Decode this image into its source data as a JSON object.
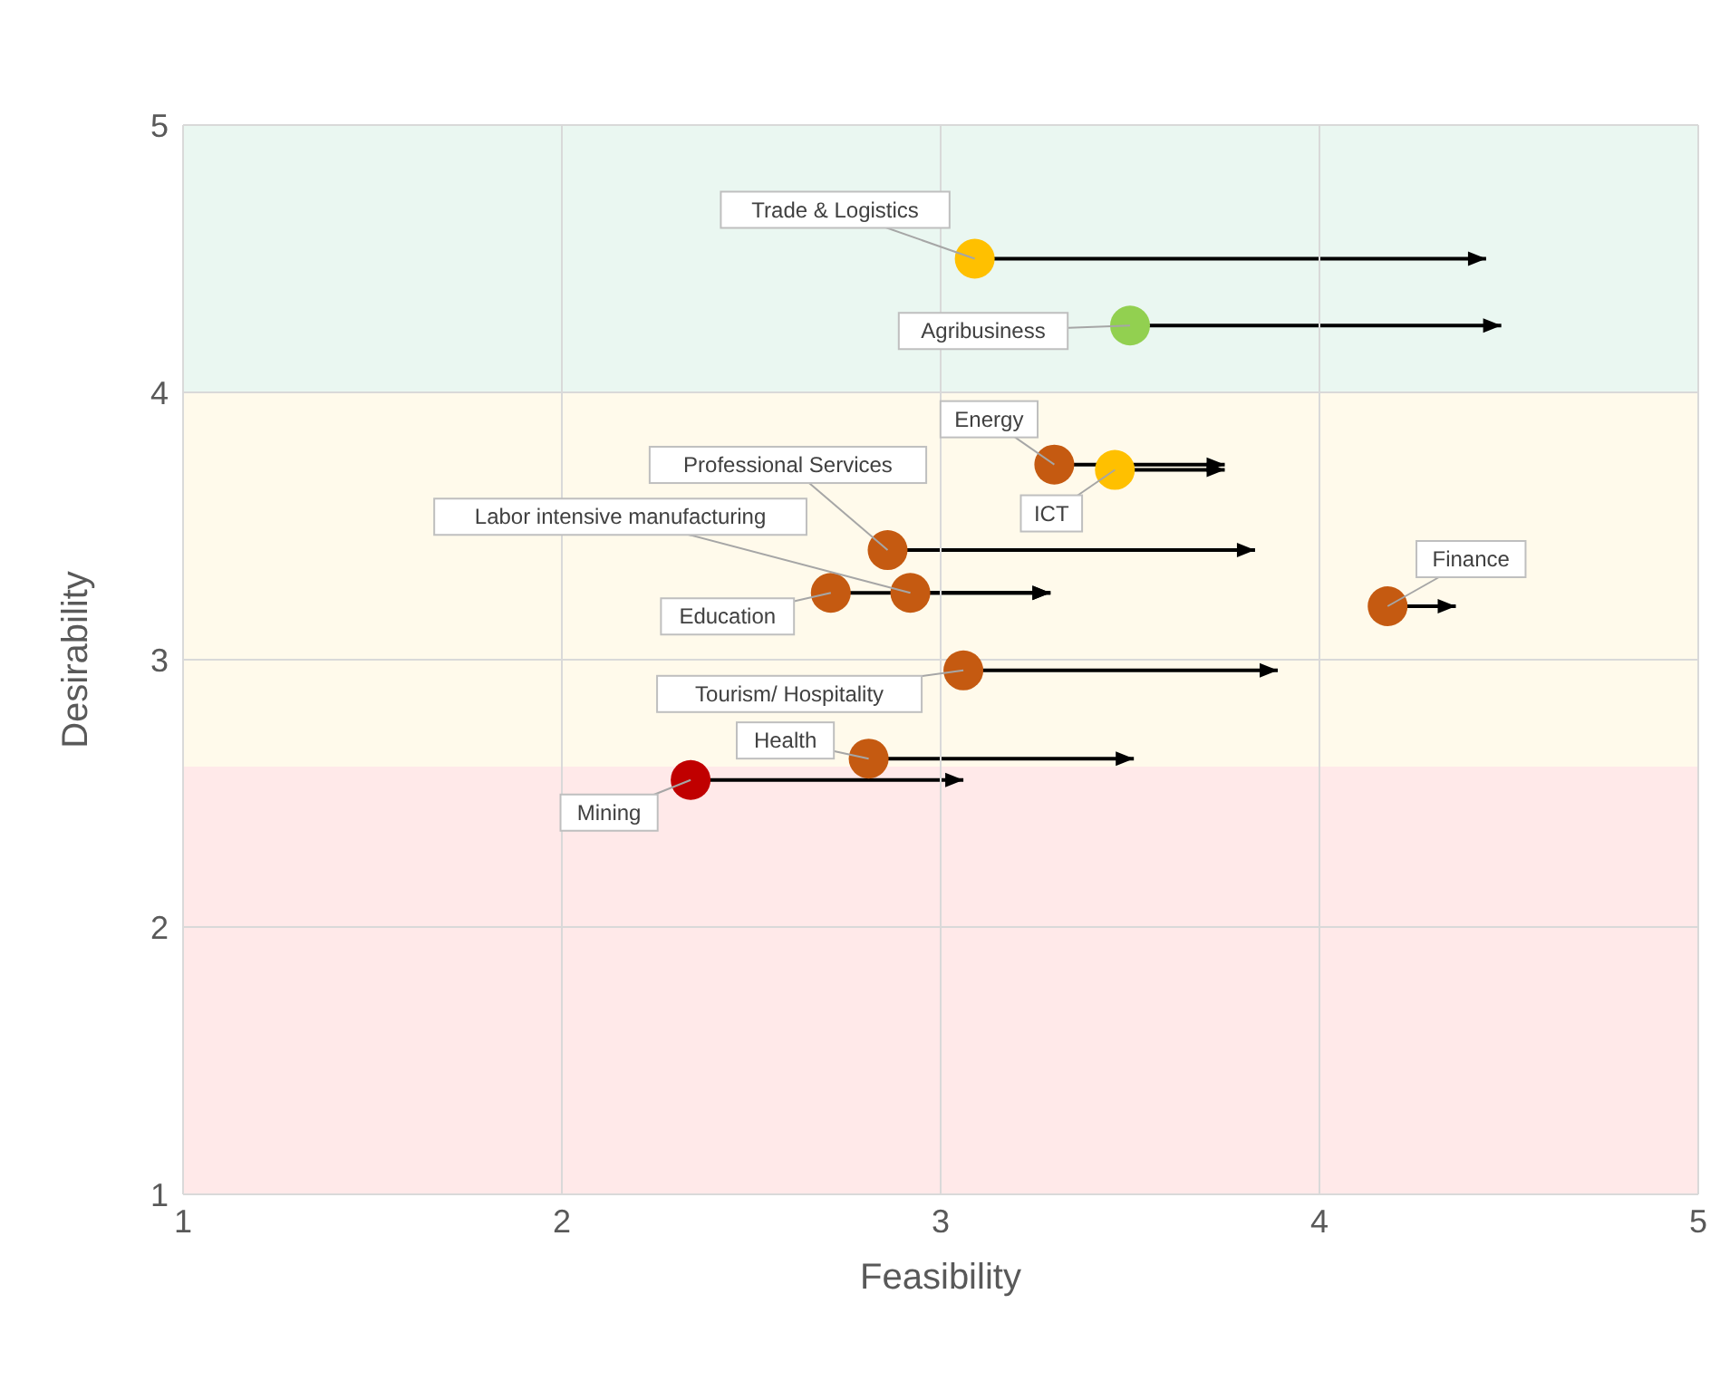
{
  "chart_data": {
    "type": "scatter",
    "xlabel": "Feasibility",
    "ylabel": "Desirability",
    "x": [
      3.09,
      3.5,
      3.3,
      3.46,
      2.86,
      2.92,
      2.71,
      4.18,
      3.06,
      2.81,
      2.34
    ],
    "values": [
      4.5,
      4.25,
      3.73,
      3.71,
      3.41,
      3.25,
      3.25,
      3.2,
      2.96,
      2.63,
      2.55
    ],
    "colors": [
      "#ffc000",
      "#92d050",
      "#c55a11",
      "#ffc000",
      "#c55a11",
      "#c55a11",
      "#c55a11",
      "#c55a11",
      "#c55a11",
      "#c55a11",
      "#c00000"
    ],
    "xerrors": [
      [
        3.09,
        4.44
      ],
      [
        3.5,
        4.48
      ],
      [
        3.3,
        3.75
      ],
      [
        3.46,
        3.75
      ],
      [
        2.86,
        3.83
      ],
      [
        2.92,
        3.29
      ],
      [
        2.71,
        3.29
      ],
      [
        4.18,
        4.36
      ],
      [
        3.06,
        3.89
      ],
      [
        2.81,
        3.51
      ],
      [
        2.34,
        3.06
      ]
    ],
    "annotations": [
      {
        "text": "Trade & Logistics",
        "x": 3.09,
        "y": 4.5
      },
      {
        "text": "Agribusiness",
        "x": 3.5,
        "y": 4.25
      },
      {
        "text": "Energy",
        "x": 3.3,
        "y": 3.73
      },
      {
        "text": "ICT",
        "x": 3.46,
        "y": 3.71
      },
      {
        "text": "Professional Services",
        "x": 2.86,
        "y": 3.41
      },
      {
        "text": "Labor intensive manufacturing",
        "x": 2.92,
        "y": 3.25
      },
      {
        "text": "Education",
        "x": 2.71,
        "y": 3.25
      },
      {
        "text": "Finance",
        "x": 4.18,
        "y": 3.2
      },
      {
        "text": "Tourism/ Hospitality",
        "x": 3.06,
        "y": 2.96
      },
      {
        "text": "Health",
        "x": 2.81,
        "y": 2.63
      },
      {
        "text": "Mining",
        "x": 2.34,
        "y": 2.55
      }
    ],
    "bands": [
      {
        "axis": "y",
        "from": 4,
        "to": 5,
        "color": "#eaf7f1"
      },
      {
        "axis": "y",
        "from": 2.6,
        "to": 4,
        "color": "#fffaeb"
      },
      {
        "axis": "y",
        "from": 1,
        "to": 2.6,
        "color": "#ffe9e9"
      }
    ],
    "xlim": [
      1,
      5
    ],
    "ylim": [
      1,
      5
    ],
    "xticks": [
      1,
      2,
      3,
      4,
      5
    ],
    "yticks": [
      1,
      2,
      3,
      4,
      5
    ],
    "grid": true,
    "marker": "circle"
  }
}
